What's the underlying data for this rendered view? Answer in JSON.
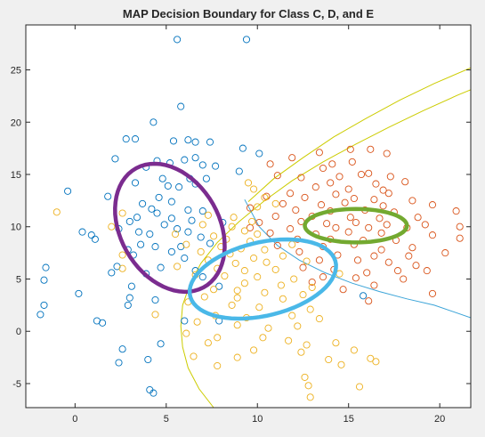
{
  "chart_data": {
    "type": "scatter",
    "title": "MAP Decision Boundary for Class C, D, and E",
    "xlabel": "",
    "ylabel": "",
    "xlim": [
      -2.7,
      21.7
    ],
    "ylim": [
      -7.3,
      29.3
    ],
    "xticks": [
      0,
      5,
      10,
      15,
      20
    ],
    "yticks": [
      -5,
      0,
      5,
      10,
      15,
      20,
      25
    ],
    "xtick_labels": [
      "0",
      "5",
      "10",
      "15",
      "20"
    ],
    "ytick_labels": [
      "-5",
      "0",
      "5",
      "10",
      "15",
      "20",
      "25"
    ],
    "grid": false,
    "legend": "none",
    "marker": "open-circle",
    "series": [
      {
        "color": "#0072bd",
        "points": [
          [
            5.6,
            27.9
          ],
          [
            9.4,
            27.9
          ],
          [
            5.8,
            21.5
          ],
          [
            4.3,
            20
          ],
          [
            2.8,
            18.4
          ],
          [
            3.3,
            18.4
          ],
          [
            5.4,
            18.2
          ],
          [
            6.2,
            18.3
          ],
          [
            6.6,
            18.1
          ],
          [
            7.4,
            18.1
          ],
          [
            9.2,
            17.5
          ],
          [
            10.1,
            17
          ],
          [
            2.2,
            16.5
          ],
          [
            4.5,
            16.3
          ],
          [
            5.2,
            16.1
          ],
          [
            6.0,
            16.4
          ],
          [
            6.6,
            16.6
          ],
          [
            7.0,
            15.9
          ],
          [
            7.7,
            15.8
          ],
          [
            3.9,
            15.7
          ],
          [
            9.0,
            15.3
          ],
          [
            4.8,
            14.6
          ],
          [
            6.3,
            14.6
          ],
          [
            7.2,
            14.6
          ],
          [
            3.3,
            14.2
          ],
          [
            5.1,
            13.9
          ],
          [
            5.7,
            13.8
          ],
          [
            6.6,
            14.1
          ],
          [
            -0.4,
            13.4
          ],
          [
            1.8,
            12.9
          ],
          [
            4.6,
            12.8
          ],
          [
            5.3,
            12.4
          ],
          [
            3.7,
            12.2
          ],
          [
            4.2,
            11.7
          ],
          [
            6.2,
            11.6
          ],
          [
            7.0,
            11.5
          ],
          [
            4.5,
            11.3
          ],
          [
            3.4,
            10.9
          ],
          [
            5.3,
            10.8
          ],
          [
            6.4,
            10.6
          ],
          [
            8.1,
            10.4
          ],
          [
            3.0,
            10.5
          ],
          [
            4.9,
            10.2
          ],
          [
            5.6,
            9.8
          ],
          [
            6.2,
            9.5
          ],
          [
            2.4,
            9.8
          ],
          [
            3.5,
            9.5
          ],
          [
            4.1,
            9.3
          ],
          [
            0.4,
            9.5
          ],
          [
            0.9,
            9.2
          ],
          [
            1.1,
            8.8
          ],
          [
            6.9,
            9.0
          ],
          [
            7.4,
            8.4
          ],
          [
            3.6,
            8.3
          ],
          [
            4.4,
            8.1
          ],
          [
            5.8,
            8.1
          ],
          [
            2.9,
            7.8
          ],
          [
            5.3,
            7.6
          ],
          [
            3.2,
            7.3
          ],
          [
            6.0,
            7.0
          ],
          [
            2.3,
            6.2
          ],
          [
            4.7,
            6.1
          ],
          [
            2.0,
            5.6
          ],
          [
            3.9,
            5.5
          ],
          [
            6.6,
            5.8
          ],
          [
            7.0,
            5.2
          ],
          [
            -1.6,
            6.1
          ],
          [
            -1.7,
            4.9
          ],
          [
            3.1,
            4.3
          ],
          [
            7.9,
            4.3
          ],
          [
            0.2,
            3.6
          ],
          [
            3.0,
            3.2
          ],
          [
            4.4,
            3.0
          ],
          [
            2.9,
            2.5
          ],
          [
            -1.7,
            2.5
          ],
          [
            -1.9,
            1.6
          ],
          [
            1.2,
            1.0
          ],
          [
            1.5,
            0.8
          ],
          [
            6.0,
            1.0
          ],
          [
            7.9,
            1.0
          ],
          [
            4.7,
            -1.2
          ],
          [
            2.6,
            -1.7
          ],
          [
            4.0,
            -2.7
          ],
          [
            2.4,
            -3.0
          ],
          [
            4.1,
            -5.6
          ],
          [
            4.3,
            -5.9
          ],
          [
            15.8,
            3.4
          ]
        ]
      },
      {
        "color": "#d95319",
        "points": [
          [
            13.4,
            17.1
          ],
          [
            15.1,
            17.4
          ],
          [
            16.2,
            17.4
          ],
          [
            17.1,
            17.0
          ],
          [
            10.7,
            16.0
          ],
          [
            11.9,
            16.6
          ],
          [
            14.1,
            16.0
          ],
          [
            15.2,
            16.2
          ],
          [
            13.6,
            15.6
          ],
          [
            16.1,
            15.1
          ],
          [
            11.1,
            14.9
          ],
          [
            15.7,
            15.0
          ],
          [
            12.4,
            14.7
          ],
          [
            14.5,
            14.8
          ],
          [
            17.3,
            14.8
          ],
          [
            14.0,
            14.2
          ],
          [
            16.5,
            14.1
          ],
          [
            18.1,
            14.3
          ],
          [
            13.2,
            13.8
          ],
          [
            15.0,
            13.6
          ],
          [
            16.9,
            13.5
          ],
          [
            11.8,
            13.2
          ],
          [
            14.3,
            13.1
          ],
          [
            17.2,
            13.2
          ],
          [
            10.5,
            12.9
          ],
          [
            12.6,
            12.8
          ],
          [
            15.3,
            12.7
          ],
          [
            16.4,
            12.6
          ],
          [
            18.5,
            12.5
          ],
          [
            11.4,
            12.2
          ],
          [
            13.5,
            12.1
          ],
          [
            14.8,
            12.3
          ],
          [
            16.9,
            12.0
          ],
          [
            19.6,
            12.1
          ],
          [
            9.6,
            11.8
          ],
          [
            12.1,
            11.6
          ],
          [
            14.0,
            11.5
          ],
          [
            15.9,
            11.6
          ],
          [
            17.5,
            11.4
          ],
          [
            20.9,
            11.5
          ],
          [
            11.0,
            11.0
          ],
          [
            13.0,
            11.0
          ],
          [
            15.1,
            10.9
          ],
          [
            16.7,
            10.8
          ],
          [
            18.8,
            10.9
          ],
          [
            10.1,
            10.4
          ],
          [
            12.4,
            10.5
          ],
          [
            13.8,
            10.3
          ],
          [
            15.4,
            10.4
          ],
          [
            17.1,
            10.2
          ],
          [
            19.2,
            10.2
          ],
          [
            9.6,
            9.9
          ],
          [
            11.8,
            9.8
          ],
          [
            14.3,
            9.9
          ],
          [
            16.1,
            9.9
          ],
          [
            18.2,
            9.9
          ],
          [
            21.1,
            10.0
          ],
          [
            10.7,
            9.4
          ],
          [
            13.2,
            9.3
          ],
          [
            15.0,
            9.5
          ],
          [
            16.8,
            9.4
          ],
          [
            19.6,
            9.2
          ],
          [
            12.2,
            8.8
          ],
          [
            14.0,
            8.8
          ],
          [
            15.8,
            8.7
          ],
          [
            17.6,
            8.7
          ],
          [
            21.1,
            8.9
          ],
          [
            11.1,
            8.2
          ],
          [
            13.6,
            8.1
          ],
          [
            15.3,
            8.3
          ],
          [
            16.8,
            7.8
          ],
          [
            18.5,
            8.0
          ],
          [
            12.3,
            7.6
          ],
          [
            14.4,
            7.3
          ],
          [
            16.4,
            7.2
          ],
          [
            18.3,
            7.2
          ],
          [
            20.3,
            7.5
          ],
          [
            13.4,
            6.8
          ],
          [
            15.5,
            6.8
          ],
          [
            17.2,
            6.6
          ],
          [
            18.7,
            6.3
          ],
          [
            12.5,
            6.1
          ],
          [
            14.2,
            5.9
          ],
          [
            16.0,
            5.6
          ],
          [
            17.7,
            5.8
          ],
          [
            19.3,
            5.8
          ],
          [
            13.6,
            5.2
          ],
          [
            15.4,
            5.1
          ],
          [
            18.0,
            5.0
          ],
          [
            13.0,
            4.7
          ],
          [
            16.4,
            4.4
          ],
          [
            14.7,
            4.0
          ],
          [
            19.6,
            3.6
          ],
          [
            16.1,
            2.9
          ]
        ]
      },
      {
        "color": "#edb120",
        "points": [
          [
            9.5,
            14.2
          ],
          [
            9.8,
            13.6
          ],
          [
            10.4,
            12.8
          ],
          [
            11.0,
            12.2
          ],
          [
            10.0,
            11.9
          ],
          [
            -1.0,
            11.4
          ],
          [
            2.6,
            11.3
          ],
          [
            7.3,
            11.1
          ],
          [
            8.7,
            10.9
          ],
          [
            9.7,
            10.5
          ],
          [
            2.0,
            10.0
          ],
          [
            7.0,
            10.2
          ],
          [
            8.6,
            10.0
          ],
          [
            9.3,
            9.6
          ],
          [
            10.0,
            9.3
          ],
          [
            5.5,
            9.3
          ],
          [
            7.6,
            9.1
          ],
          [
            8.3,
            8.8
          ],
          [
            9.6,
            8.6
          ],
          [
            6.1,
            8.3
          ],
          [
            8.0,
            8.1
          ],
          [
            9.1,
            7.9
          ],
          [
            10.4,
            7.8
          ],
          [
            11.9,
            8.3
          ],
          [
            2.6,
            7.3
          ],
          [
            6.9,
            7.6
          ],
          [
            8.5,
            7.4
          ],
          [
            9.8,
            7.0
          ],
          [
            11.4,
            7.2
          ],
          [
            7.3,
            6.8
          ],
          [
            8.8,
            6.5
          ],
          [
            10.5,
            6.6
          ],
          [
            12.7,
            6.7
          ],
          [
            2.6,
            6.0
          ],
          [
            5.6,
            6.2
          ],
          [
            7.8,
            6.0
          ],
          [
            9.3,
            5.8
          ],
          [
            11.0,
            5.9
          ],
          [
            6.6,
            5.4
          ],
          [
            8.2,
            5.3
          ],
          [
            10.0,
            5.2
          ],
          [
            12.0,
            5.0
          ],
          [
            14.5,
            5.5
          ],
          [
            9.3,
            4.6
          ],
          [
            11.3,
            4.4
          ],
          [
            13.0,
            4.2
          ],
          [
            7.6,
            4.0
          ],
          [
            8.9,
            3.9
          ],
          [
            10.4,
            3.7
          ],
          [
            12.5,
            3.5
          ],
          [
            7.1,
            3.3
          ],
          [
            8.9,
            3.2
          ],
          [
            11.4,
            3.1
          ],
          [
            6.2,
            2.8
          ],
          [
            8.6,
            2.5
          ],
          [
            10.1,
            2.3
          ],
          [
            12.9,
            2.1
          ],
          [
            4.4,
            1.6
          ],
          [
            7.7,
            1.5
          ],
          [
            9.4,
            1.3
          ],
          [
            11.9,
            1.5
          ],
          [
            13.4,
            1.2
          ],
          [
            6.7,
            0.9
          ],
          [
            8.9,
            0.6
          ],
          [
            10.6,
            0.3
          ],
          [
            12.2,
            0.5
          ],
          [
            6.1,
            -0.2
          ],
          [
            7.8,
            -0.6
          ],
          [
            10.3,
            -0.6
          ],
          [
            11.7,
            -0.9
          ],
          [
            7.3,
            -1.1
          ],
          [
            12.7,
            -1.3
          ],
          [
            14.3,
            -1.1
          ],
          [
            9.8,
            -1.8
          ],
          [
            12.4,
            -2.0
          ],
          [
            15.3,
            -1.8
          ],
          [
            6.5,
            -2.4
          ],
          [
            8.9,
            -2.5
          ],
          [
            13.9,
            -2.7
          ],
          [
            16.2,
            -2.6
          ],
          [
            16.5,
            -2.9
          ],
          [
            7.8,
            -3.3
          ],
          [
            14.6,
            -3.2
          ],
          [
            12.6,
            -4.4
          ],
          [
            15.6,
            -5.3
          ],
          [
            12.8,
            -5.2
          ],
          [
            12.9,
            -6.3
          ]
        ]
      }
    ],
    "boundaries": [
      {
        "color": "#cccc00",
        "points": [
          [
            7.6,
            -7.3
          ],
          [
            6.8,
            -5.5
          ],
          [
            6.2,
            -3.5
          ],
          [
            5.9,
            -1.5
          ],
          [
            5.8,
            0.5
          ],
          [
            5.9,
            2.5
          ],
          [
            6.3,
            4.5
          ],
          [
            6.9,
            6.5
          ],
          [
            7.8,
            8.5
          ],
          [
            9.0,
            10.5
          ],
          [
            10.4,
            12.5
          ],
          [
            11.9,
            14.4
          ],
          [
            13.6,
            16.2
          ],
          [
            15.4,
            17.9
          ],
          [
            17.2,
            19.5
          ],
          [
            19.1,
            21.1
          ],
          [
            21.0,
            22.6
          ],
          [
            21.7,
            23.1
          ]
        ]
      },
      {
        "color": "#cccc00",
        "points": [
          [
            9.5,
            12.4
          ],
          [
            10.9,
            14.6
          ],
          [
            12.5,
            16.6
          ],
          [
            14.2,
            18.6
          ],
          [
            16.0,
            20.4
          ],
          [
            17.8,
            22.1
          ],
          [
            19.7,
            23.7
          ],
          [
            21.7,
            25.2
          ]
        ]
      },
      {
        "color": "#3ba4d8",
        "points": [
          [
            9.3,
            12.6
          ],
          [
            10.1,
            10.0
          ],
          [
            11.1,
            8.2
          ],
          [
            12.3,
            6.8
          ],
          [
            13.7,
            5.6
          ],
          [
            15.2,
            4.6
          ],
          [
            16.7,
            3.8
          ],
          [
            18.2,
            3.1
          ],
          [
            19.7,
            2.5
          ],
          [
            21.7,
            1.3
          ]
        ]
      }
    ],
    "ellipses": [
      {
        "color": "#7b2c8f",
        "cx": 5.2,
        "cy": 9.9,
        "rx": 2.85,
        "ry": 6.2,
        "angle_deg": 10
      },
      {
        "color": "#4ab8e8",
        "cx": 10.3,
        "cy": 5.0,
        "rx": 3.2,
        "ry": 4.5,
        "angle_deg": 130
      },
      {
        "color": "#73a930",
        "cx": 15.4,
        "cy": 10.1,
        "rx": 2.8,
        "ry": 1.6,
        "angle_deg": 0
      }
    ]
  }
}
